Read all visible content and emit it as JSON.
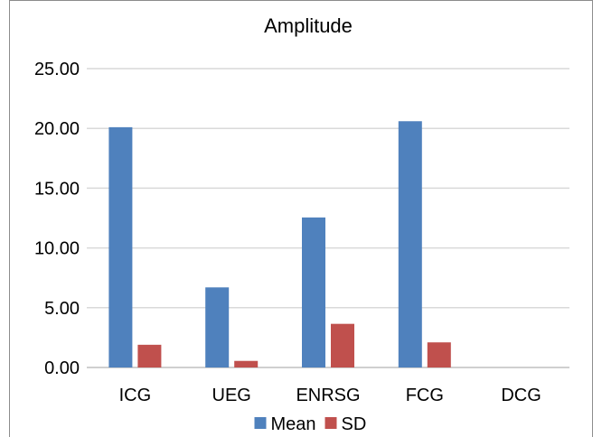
{
  "chart_data": {
    "type": "bar",
    "title": "Amplitude",
    "categories": [
      "ICG",
      "UEG",
      "ENRSG",
      "FCG",
      "DCG"
    ],
    "series": [
      {
        "name": "Mean",
        "values": [
          20.1,
          6.7,
          12.55,
          20.6,
          0
        ],
        "color": "#4f81bd"
      },
      {
        "name": "SD",
        "values": [
          1.9,
          0.55,
          3.65,
          2.1,
          0
        ],
        "color": "#c0504d"
      }
    ],
    "yticks": [
      "0.00",
      "5.00",
      "10.00",
      "15.00",
      "20.00",
      "25.00"
    ],
    "ylim": [
      0,
      25
    ],
    "xlabel": "",
    "ylabel": "",
    "grid": true,
    "legend_position": "bottom"
  }
}
